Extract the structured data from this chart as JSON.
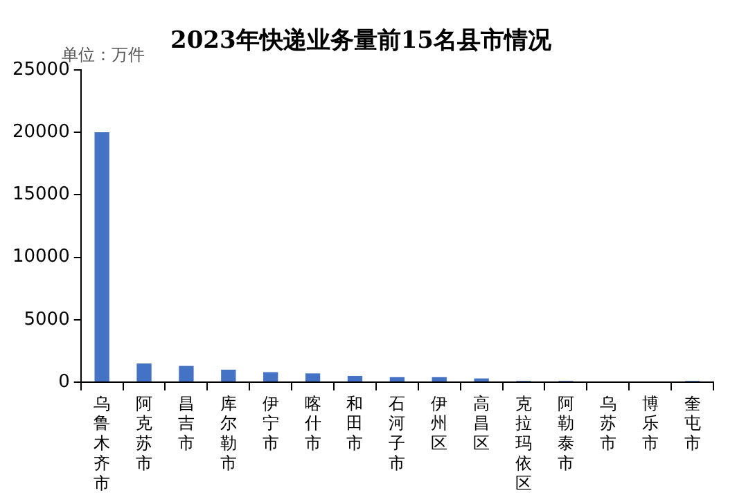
{
  "chart_data": {
    "type": "bar",
    "title": "2023年快递业务量前15名县市情况",
    "ylabel": "单位：万件",
    "categories": [
      "乌鲁木齐市",
      "阿克苏市",
      "昌吉市",
      "库尔勒市",
      "伊宁市",
      "喀什市",
      "和田市",
      "石河子市",
      "伊州区",
      "高昌区",
      "克拉玛依区",
      "阿勒泰市",
      "乌苏市",
      "博乐市",
      "奎屯市"
    ],
    "values": [
      20000,
      1500,
      1300,
      1000,
      800,
      700,
      500,
      400,
      400,
      300,
      100,
      100,
      null,
      null,
      100
    ],
    "color": "#4472c4",
    "ylim": [
      0,
      25000
    ],
    "yticks": [
      0,
      5000,
      10000,
      15000,
      20000,
      25000
    ],
    "grid": false,
    "legend": false
  }
}
